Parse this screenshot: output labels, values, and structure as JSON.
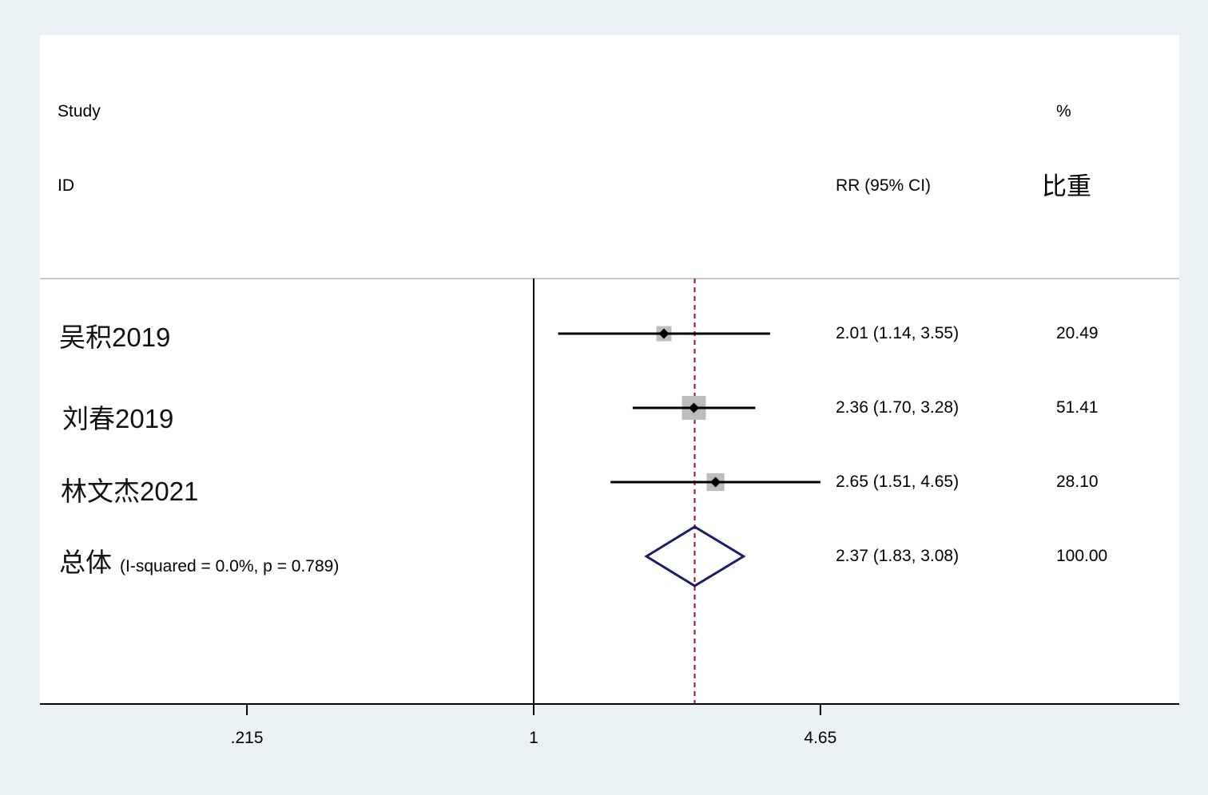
{
  "header": {
    "study_line1": "Study",
    "study_line2": "ID",
    "ci_label": "RR (95% CI)",
    "weight_line1": "%",
    "weight_line2": "比重"
  },
  "overall": {
    "label": "总体",
    "heterogeneity": "(I-squared = 0.0%, p = 0.789)"
  },
  "chart_data": {
    "type": "forest",
    "measure": "RR",
    "scale": "log",
    "x_ticks": [
      {
        "value": 0.215,
        "label": ".215"
      },
      {
        "value": 1,
        "label": "1"
      },
      {
        "value": 4.65,
        "label": "4.65"
      }
    ],
    "null_value": 1,
    "pooled_reference_line": 2.37,
    "studies": [
      {
        "id": "吴积2019",
        "rr": 2.01,
        "lower": 1.14,
        "upper": 3.55,
        "rr_text": "2.01 (1.14, 3.55)",
        "weight": 20.49,
        "weight_text": "20.49"
      },
      {
        "id": "刘春2019",
        "rr": 2.36,
        "lower": 1.7,
        "upper": 3.28,
        "rr_text": "2.36 (1.70, 3.28)",
        "weight": 51.41,
        "weight_text": "51.41"
      },
      {
        "id": "林文杰2021",
        "rr": 2.65,
        "lower": 1.51,
        "upper": 4.65,
        "rr_text": "2.65 (1.51, 4.65)",
        "weight": 28.1,
        "weight_text": "28.10"
      }
    ],
    "overall": {
      "rr": 2.37,
      "lower": 1.83,
      "upper": 3.08,
      "rr_text": "2.37 (1.83, 3.08)",
      "weight": 100.0,
      "weight_text": "100.00"
    },
    "colors": {
      "ci_line": "#000000",
      "weight_box": "#bdbdbd",
      "diamond": "#1a1a6e",
      "pooled_line": "#8b1a2b",
      "axis": "#000000",
      "separator": "#c8c8c8",
      "background": "#e9f1f3",
      "panel": "#ffffff"
    }
  }
}
